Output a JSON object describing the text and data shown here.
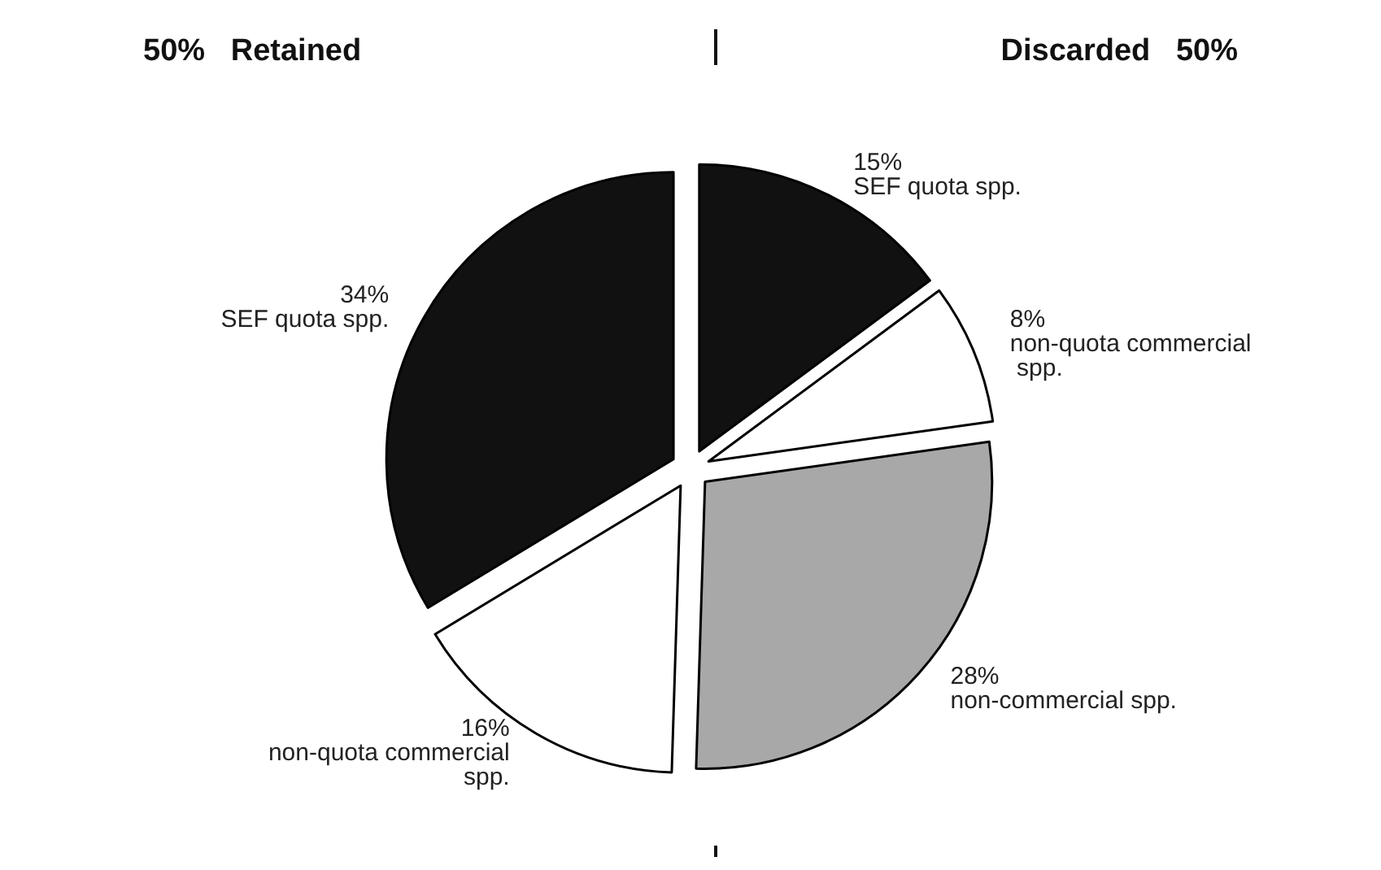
{
  "chart_data": {
    "type": "pie",
    "categories": [
      "SEF quota spp.",
      "non-quota commercial spp.",
      "non-commercial spp.",
      "non-quota commercial spp.",
      "SEF quota spp."
    ],
    "values": [
      15,
      8,
      28,
      16,
      34
    ],
    "colors": [
      "#111111",
      "#ffffff",
      "#a8a8a8",
      "#ffffff",
      "#111111"
    ],
    "value_labels": [
      "15%",
      "8%",
      "28%",
      "16%",
      "34%"
    ],
    "annotations": [
      "50%   Retained",
      "Discarded   50%"
    ],
    "legend": false
  }
}
